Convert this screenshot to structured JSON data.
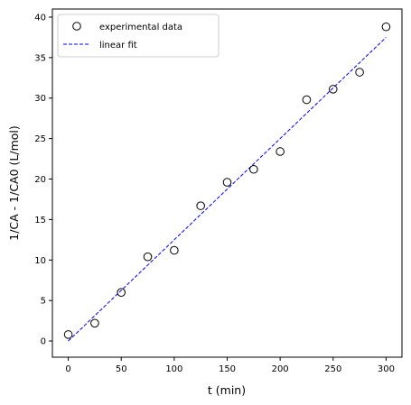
{
  "chart_data": {
    "type": "scatter",
    "xlabel": "t (min)",
    "ylabel": "1/CA - 1/CA0 (L/mol)",
    "xlim": [
      -15,
      315
    ],
    "ylim": [
      -2,
      41
    ],
    "xticks": [
      0,
      50,
      100,
      150,
      200,
      250,
      300
    ],
    "yticks": [
      0,
      5,
      10,
      15,
      20,
      25,
      30,
      35,
      40
    ],
    "xtick_labels": [
      "0",
      "50",
      "100",
      "150",
      "200",
      "250",
      "300"
    ],
    "ytick_labels": [
      "0",
      "5",
      "10",
      "15",
      "20",
      "25",
      "30",
      "35",
      "40"
    ],
    "grid": false,
    "legend_position": "top-left",
    "series": [
      {
        "name": "experimental data",
        "kind": "scatter",
        "marker": "open-circle",
        "color": "#000000",
        "x": [
          0,
          25,
          50,
          75,
          100,
          125,
          150,
          175,
          200,
          225,
          250,
          275,
          300
        ],
        "y": [
          0.8,
          2.2,
          6.0,
          10.4,
          11.2,
          16.7,
          19.6,
          21.2,
          23.4,
          29.8,
          31.1,
          33.2,
          38.8
        ]
      },
      {
        "name": "linear fit",
        "kind": "line",
        "style": "dashed",
        "color": "#0000ff",
        "x": [
          0,
          300
        ],
        "y": [
          0.0,
          37.5
        ]
      }
    ]
  }
}
